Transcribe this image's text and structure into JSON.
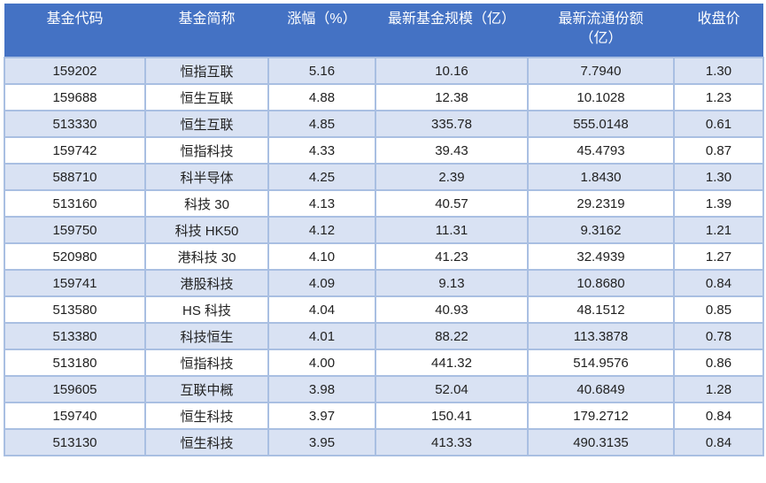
{
  "chart_data": {
    "type": "table",
    "columns": [
      "基金代码",
      "基金简称",
      "涨幅（%）",
      "最新基金规模（亿）",
      "最新流通份额\n（亿）",
      "收盘价"
    ],
    "rows": [
      [
        "159202",
        "恒指互联",
        "5.16",
        "10.16",
        "7.7940",
        "1.30"
      ],
      [
        "159688",
        "恒生互联",
        "4.88",
        "12.38",
        "10.1028",
        "1.23"
      ],
      [
        "513330",
        "恒生互联",
        "4.85",
        "335.78",
        "555.0148",
        "0.61"
      ],
      [
        "159742",
        "恒指科技",
        "4.33",
        "39.43",
        "45.4793",
        "0.87"
      ],
      [
        "588710",
        "科半导体",
        "4.25",
        "2.39",
        "1.8430",
        "1.30"
      ],
      [
        "513160",
        "科技 30",
        "4.13",
        "40.57",
        "29.2319",
        "1.39"
      ],
      [
        "159750",
        "科技 HK50",
        "4.12",
        "11.31",
        "9.3162",
        "1.21"
      ],
      [
        "520980",
        "港科技 30",
        "4.10",
        "41.23",
        "32.4939",
        "1.27"
      ],
      [
        "159741",
        "港股科技",
        "4.09",
        "9.13",
        "10.8680",
        "0.84"
      ],
      [
        "513580",
        "HS 科技",
        "4.04",
        "40.93",
        "48.1512",
        "0.85"
      ],
      [
        "513380",
        "科技恒生",
        "4.01",
        "88.22",
        "113.3878",
        "0.78"
      ],
      [
        "513180",
        "恒指科技",
        "4.00",
        "441.32",
        "514.9576",
        "0.86"
      ],
      [
        "159605",
        "互联中概",
        "3.98",
        "52.04",
        "40.6849",
        "1.28"
      ],
      [
        "159740",
        "恒生科技",
        "3.97",
        "150.41",
        "179.2712",
        "0.84"
      ],
      [
        "513130",
        "恒生科技",
        "3.95",
        "413.33",
        "490.3135",
        "0.84"
      ]
    ]
  },
  "colors": {
    "header_bg": "#4472C4",
    "header_text": "#FFFFFF",
    "row_alt_bg": "#D9E2F3",
    "row_bg": "#FFFFFF",
    "border": "#A9BFE2",
    "cell_text": "#212121"
  }
}
